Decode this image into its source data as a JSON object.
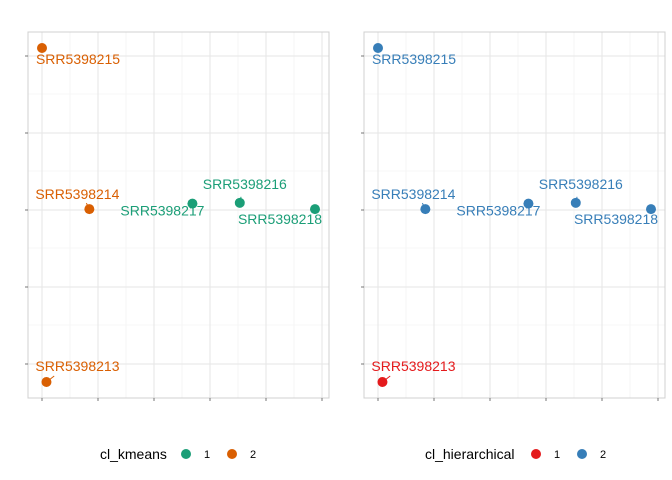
{
  "chart_data": [
    {
      "type": "scatter",
      "title": "",
      "xlabel": "",
      "ylabel": "",
      "grid": true,
      "legend_position": "bottom",
      "color_by": "cl_kmeans",
      "legend": {
        "title": "cl_kmeans",
        "entries": [
          {
            "label": "1",
            "color": "#1b9e77"
          },
          {
            "label": "2",
            "color": "#d95f02"
          }
        ]
      },
      "points": [
        {
          "name": "SRR5398215",
          "x": 0.0,
          "y": 2.05,
          "cluster": "2"
        },
        {
          "name": "SRR5398214",
          "x": 0.85,
          "y": 0.0,
          "cluster": "2"
        },
        {
          "name": "SRR5398217",
          "x": 2.7,
          "y": 0.07,
          "cluster": "1"
        },
        {
          "name": "SRR5398216",
          "x": 3.55,
          "y": 0.08,
          "cluster": "1"
        },
        {
          "name": "SRR5398218",
          "x": 4.9,
          "y": 0.0,
          "cluster": "1"
        },
        {
          "name": "SRR5398213",
          "x": 0.08,
          "y": -2.2,
          "cluster": "2"
        }
      ]
    },
    {
      "type": "scatter",
      "title": "",
      "xlabel": "",
      "ylabel": "",
      "grid": true,
      "legend_position": "bottom",
      "color_by": "cl_hierarchical",
      "legend": {
        "title": "cl_hierarchical",
        "entries": [
          {
            "label": "1",
            "color": "#e41a1c"
          },
          {
            "label": "2",
            "color": "#377eb8"
          }
        ]
      },
      "points": [
        {
          "name": "SRR5398215",
          "x": 0.0,
          "y": 2.05,
          "cluster": "2"
        },
        {
          "name": "SRR5398214",
          "x": 0.85,
          "y": 0.0,
          "cluster": "2"
        },
        {
          "name": "SRR5398217",
          "x": 2.7,
          "y": 0.07,
          "cluster": "2"
        },
        {
          "name": "SRR5398216",
          "x": 3.55,
          "y": 0.08,
          "cluster": "2"
        },
        {
          "name": "SRR5398218",
          "x": 4.9,
          "y": 0.0,
          "cluster": "2"
        },
        {
          "name": "SRR5398213",
          "x": 0.08,
          "y": -2.2,
          "cluster": "1"
        }
      ]
    }
  ]
}
